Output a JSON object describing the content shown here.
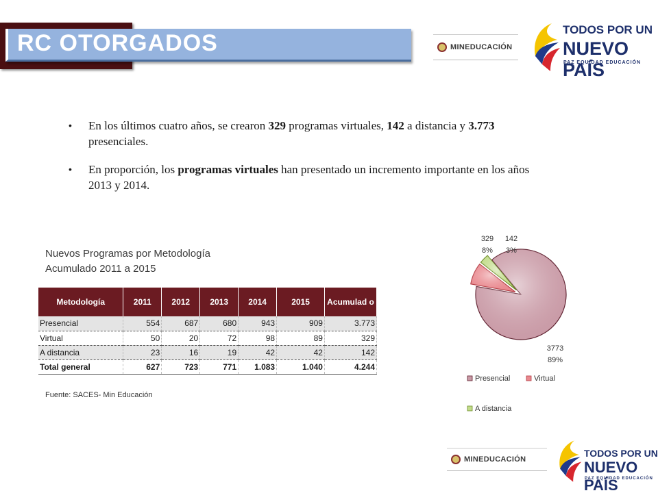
{
  "header": {
    "title": "RC OTORGADOS"
  },
  "logos": {
    "mineducacion": "MINEDUCACIÓN",
    "todos_line1": "TODOS POR UN",
    "todos_line2": "NUEVO PAÍS",
    "todos_line3": "PAZ  EQUIDAD  EDUCACIÓN"
  },
  "bullets": [
    {
      "p1": "En los últimos cuatro años, se crearon ",
      "b1": "329",
      "p2": " programas virtuales, ",
      "b2": "142",
      "p3": " a distancia y ",
      "b3": "3.773",
      "p4": " presenciales."
    },
    {
      "p1": "En proporción, los ",
      "b1": "programas virtuales",
      "p2": " han presentado un incremento importante en los años 2013 y 2014."
    }
  ],
  "table": {
    "caption_line1": "Nuevos Programas por Metodología",
    "caption_line2": "Acumulado 2011 a 2015",
    "headers": [
      "Metodología",
      "2011",
      "2012",
      "2013",
      "2014",
      "2015",
      "Acumulad o"
    ],
    "rows": [
      [
        "Presencial",
        "554",
        "687",
        "680",
        "943",
        "909",
        "3.773"
      ],
      [
        "Virtual",
        "50",
        "20",
        "72",
        "98",
        "89",
        "329"
      ],
      [
        "A distancia",
        "23",
        "16",
        "19",
        "42",
        "42",
        "142"
      ],
      [
        "Total general",
        "627",
        "723",
        "771",
        "1.083",
        "1.040",
        "4.244"
      ]
    ],
    "source": "Fuente: SACES- Min Educación"
  },
  "chart_data": {
    "type": "pie",
    "categories": [
      "Presencial",
      "Virtual",
      "A distancia"
    ],
    "values": [
      3773,
      329,
      142
    ],
    "labels": [
      {
        "value": "3773",
        "percent": "89%"
      },
      {
        "value": "329",
        "percent": "8%"
      },
      {
        "value": "142",
        "percent": "3%"
      }
    ],
    "legend": "bottom",
    "colors": [
      "#c99aa6",
      "#e9898f",
      "#c2dc8a"
    ]
  }
}
